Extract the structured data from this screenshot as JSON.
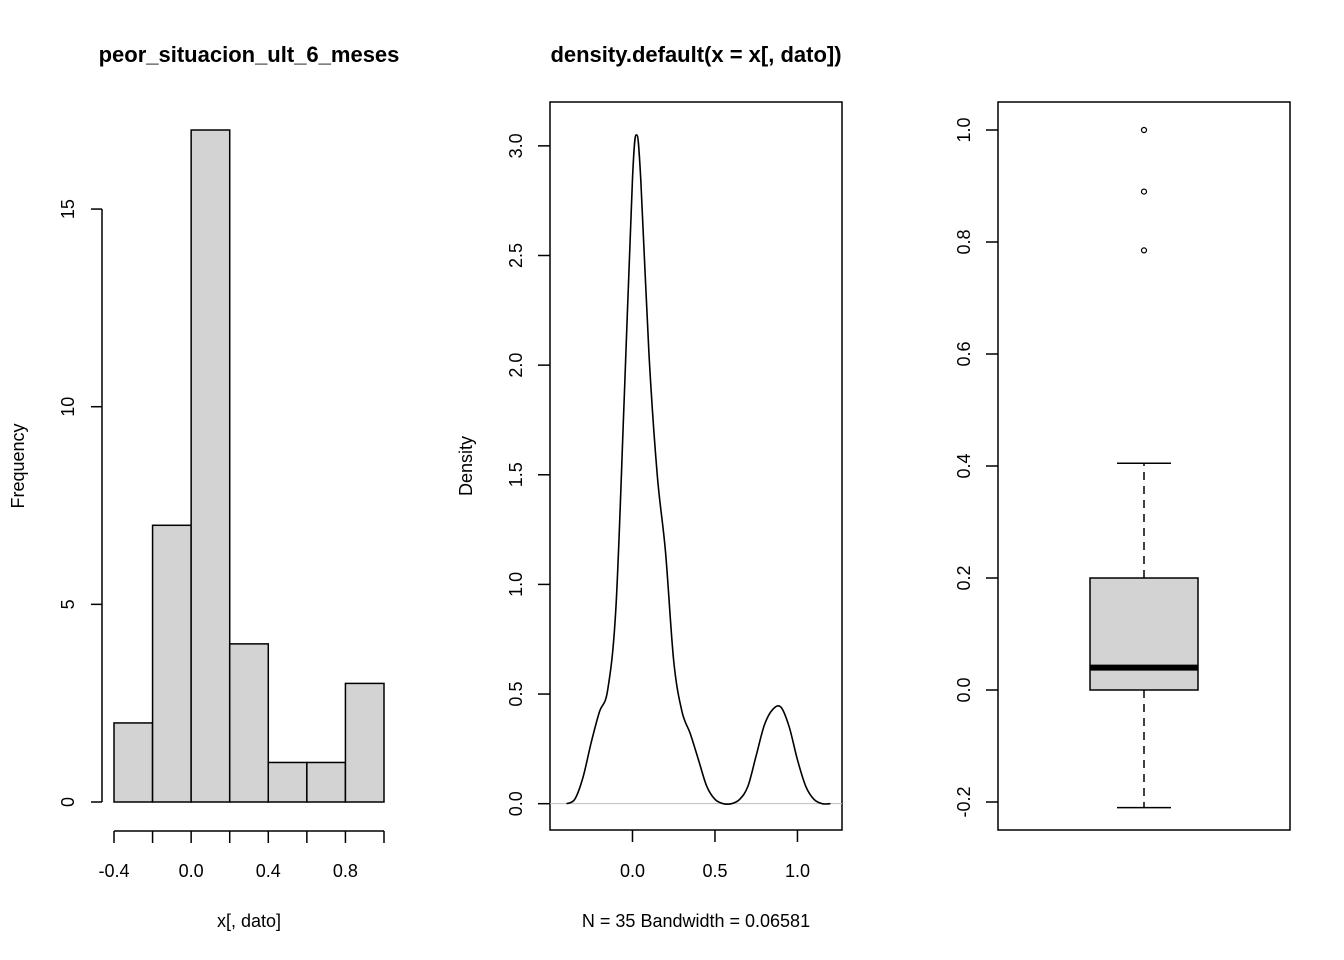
{
  "chart_data": [
    {
      "type": "bar",
      "subtype": "histogram",
      "title": "peor_situacion_ult_6_meses",
      "xlabel": "x[, dato]",
      "ylabel": "Frequency",
      "bin_edges": [
        -0.4,
        -0.2,
        0.0,
        0.2,
        0.4,
        0.6,
        0.8,
        1.0
      ],
      "values": [
        2,
        7,
        17,
        4,
        1,
        1,
        3
      ],
      "xlim": [
        -0.4,
        1.0
      ],
      "ylim": [
        0,
        17
      ],
      "x_ticks": [
        -0.4,
        -0.2,
        0.0,
        0.2,
        0.4,
        0.6,
        0.8,
        1.0
      ],
      "x_tick_labels": [
        "-0.4",
        "",
        "0.0",
        "",
        "0.4",
        "",
        "0.8",
        ""
      ],
      "y_ticks": [
        0,
        5,
        10,
        15
      ],
      "y_tick_labels": [
        "0",
        "5",
        "10",
        "15"
      ],
      "bar_fill": "#d3d3d3",
      "bar_stroke": "#000000"
    },
    {
      "type": "line",
      "subtype": "density",
      "title": "density.default(x = x[, dato])",
      "xlabel": "N = 35   Bandwidth = 0.06581",
      "ylabel": "Density",
      "x": [
        -0.4,
        -0.35,
        -0.3,
        -0.25,
        -0.2,
        -0.15,
        -0.1,
        -0.05,
        0.0,
        0.025,
        0.05,
        0.1,
        0.15,
        0.2,
        0.25,
        0.3,
        0.35,
        0.4,
        0.45,
        0.5,
        0.55,
        0.6,
        0.65,
        0.7,
        0.75,
        0.8,
        0.85,
        0.9,
        0.95,
        1.0,
        1.05,
        1.1,
        1.15,
        1.2
      ],
      "y": [
        0.0,
        0.02,
        0.12,
        0.28,
        0.42,
        0.52,
        0.9,
        1.85,
        2.85,
        3.05,
        2.85,
        2.05,
        1.5,
        1.15,
        0.65,
        0.42,
        0.32,
        0.2,
        0.08,
        0.02,
        0.0,
        0.0,
        0.02,
        0.08,
        0.22,
        0.36,
        0.43,
        0.44,
        0.35,
        0.2,
        0.08,
        0.02,
        0.0,
        0.0
      ],
      "xlim": [
        -0.5,
        1.27
      ],
      "ylim": [
        -0.12,
        3.2
      ],
      "x_ticks": [
        0.0,
        0.5,
        1.0
      ],
      "x_tick_labels": [
        "0.0",
        "0.5",
        "1.0"
      ],
      "y_ticks": [
        0.0,
        0.5,
        1.0,
        1.5,
        2.0,
        2.5,
        3.0
      ],
      "y_tick_labels": [
        "0.0",
        "0.5",
        "1.0",
        "1.5",
        "2.0",
        "2.5",
        "3.0"
      ],
      "baseline": 0,
      "baseline_color": "#bebebe",
      "line_color": "#000000"
    },
    {
      "type": "box",
      "xlim": null,
      "ylim": [
        -0.25,
        1.05
      ],
      "y_ticks": [
        -0.2,
        0.0,
        0.2,
        0.4,
        0.6,
        0.8,
        1.0
      ],
      "y_tick_labels": [
        "-0.2",
        "0.0",
        "0.2",
        "0.4",
        "0.6",
        "0.8",
        "1.0"
      ],
      "whisker_low": -0.21,
      "q1": 0.0,
      "median": 0.04,
      "q3": 0.2,
      "whisker_high": 0.405,
      "outliers": [
        0.785,
        0.89,
        1.0
      ],
      "box_fill": "#d3d3d3"
    }
  ]
}
